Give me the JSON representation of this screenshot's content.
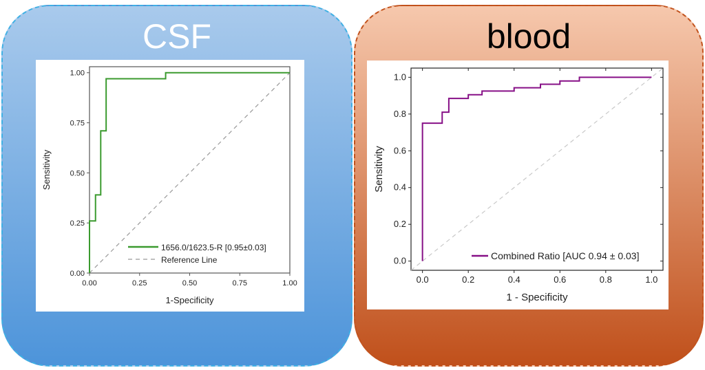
{
  "panels": {
    "left_title": "CSF",
    "right_title": "blood"
  },
  "chart_data": [
    {
      "type": "line",
      "subtype": "roc-step",
      "xlabel": "1-Specificity",
      "ylabel": "Sensitivity",
      "xlim": [
        0,
        1
      ],
      "ylim": [
        0,
        1.03
      ],
      "xticks": [
        "0.00",
        "0.25",
        "0.50",
        "0.75",
        "1.00"
      ],
      "yticks": [
        "0.00",
        "0.25",
        "0.50",
        "0.75",
        "1.00"
      ],
      "legend_position": "bottom-right",
      "series": [
        {
          "name": "1656.0/1623.5-R [0.95±0.03]",
          "color": "#3a9a2e",
          "style": "solid",
          "x": [
            0,
            0,
            0.03,
            0.03,
            0.056,
            0.056,
            0.083,
            0.083,
            0.38,
            0.38,
            1.0
          ],
          "y": [
            0,
            0.26,
            0.26,
            0.39,
            0.39,
            0.71,
            0.71,
            0.97,
            0.97,
            1.0,
            1.0
          ]
        },
        {
          "name": "Reference Line",
          "color": "#999999",
          "style": "dashed",
          "x": [
            0,
            1
          ],
          "y": [
            0,
            1
          ]
        }
      ]
    },
    {
      "type": "line",
      "subtype": "roc-step",
      "xlabel": "1 - Specificity",
      "ylabel": "Sensitivity",
      "xlim": [
        -0.05,
        1.05
      ],
      "ylim": [
        -0.05,
        1.05
      ],
      "xticks": [
        "0.0",
        "0.2",
        "0.4",
        "0.6",
        "0.8",
        "1.0"
      ],
      "yticks": [
        "0.0",
        "0.2",
        "0.4",
        "0.6",
        "0.8",
        "1.0"
      ],
      "legend_position": "bottom-right",
      "series": [
        {
          "name": "Combined Ratio [AUC 0.94 ± 0.03]",
          "color": "#860f86",
          "style": "solid",
          "x": [
            0,
            0,
            0.086,
            0.086,
            0.115,
            0.115,
            0.2,
            0.2,
            0.26,
            0.26,
            0.4,
            0.4,
            0.515,
            0.515,
            0.6,
            0.6,
            0.685,
            0.685,
            1.0
          ],
          "y": [
            0,
            0.75,
            0.75,
            0.81,
            0.81,
            0.885,
            0.885,
            0.905,
            0.905,
            0.925,
            0.925,
            0.943,
            0.943,
            0.962,
            0.962,
            0.98,
            0.98,
            1.0,
            1.0
          ]
        },
        {
          "name": "",
          "color": "#c8c8c8",
          "style": "dashed",
          "x": [
            -0.05,
            1.05
          ],
          "y": [
            -0.05,
            1.05
          ]
        }
      ]
    }
  ]
}
